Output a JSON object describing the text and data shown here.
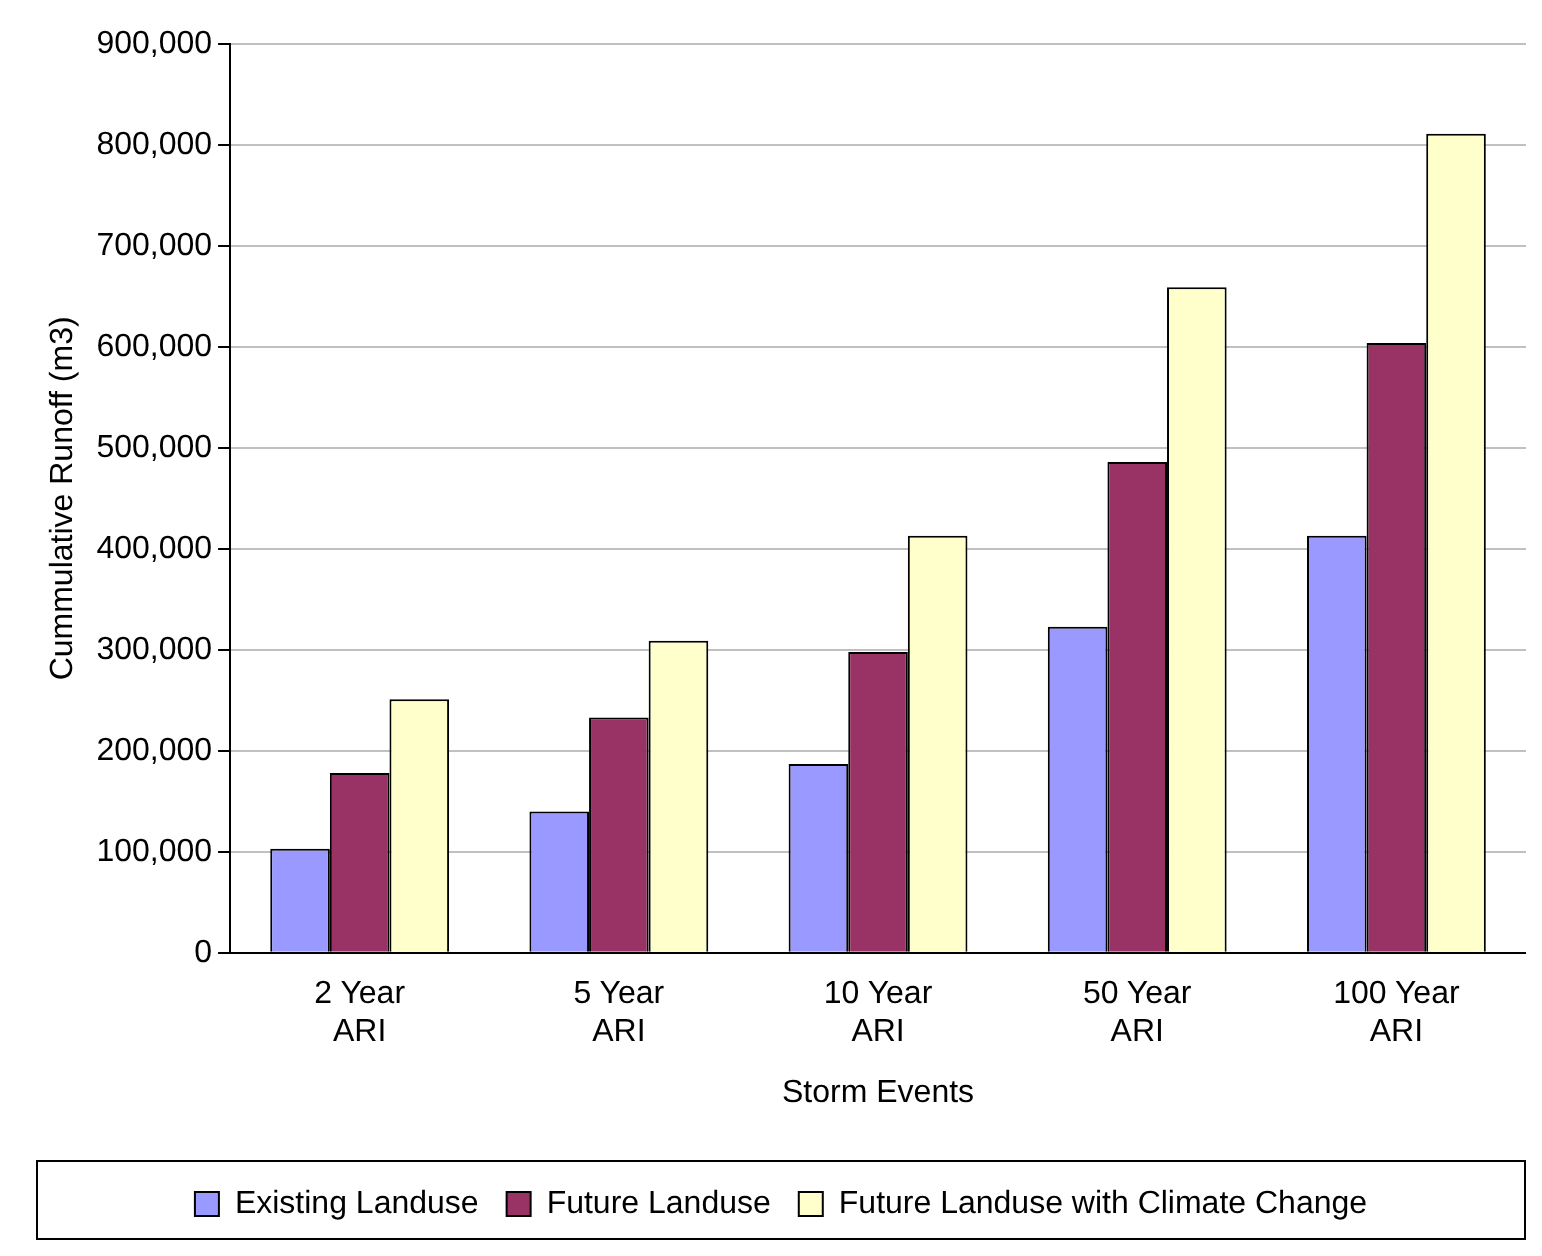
{
  "chart_data": {
    "type": "bar",
    "xlabel": "Storm Events",
    "ylabel": "Cummulative Runoff (m3)",
    "categories": [
      "2 Year ARI",
      "5 Year ARI",
      "10 Year ARI",
      "50 Year ARI",
      "100 Year ARI"
    ],
    "series": [
      {
        "name": "Existing Landuse",
        "color": "#9999ff",
        "values": [
          103000,
          140000,
          187000,
          323000,
          413000
        ]
      },
      {
        "name": "Future Landuse",
        "color": "#993366",
        "values": [
          178000,
          233000,
          298000,
          486000,
          604000
        ]
      },
      {
        "name": "Future Landuse with Climate Change",
        "color": "#ffffcc",
        "values": [
          251000,
          309000,
          413000,
          659000,
          811000
        ]
      }
    ],
    "ylim": [
      0,
      900000
    ],
    "yticks": [
      0,
      {
        "value": 100000,
        "label": "100,000"
      },
      {
        "value": 200000,
        "label": "200,000"
      },
      {
        "value": 300000,
        "label": "300,000"
      },
      {
        "value": 400000,
        "label": "400,000"
      },
      {
        "value": 500000,
        "label": "500,000"
      },
      {
        "value": 600000,
        "label": "600,000"
      },
      {
        "value": 700000,
        "label": "700,000"
      },
      {
        "value": 800000,
        "label": "800,000"
      },
      {
        "value": 900000,
        "label": "900,000"
      }
    ],
    "grid": "y",
    "legend": "bottom"
  }
}
